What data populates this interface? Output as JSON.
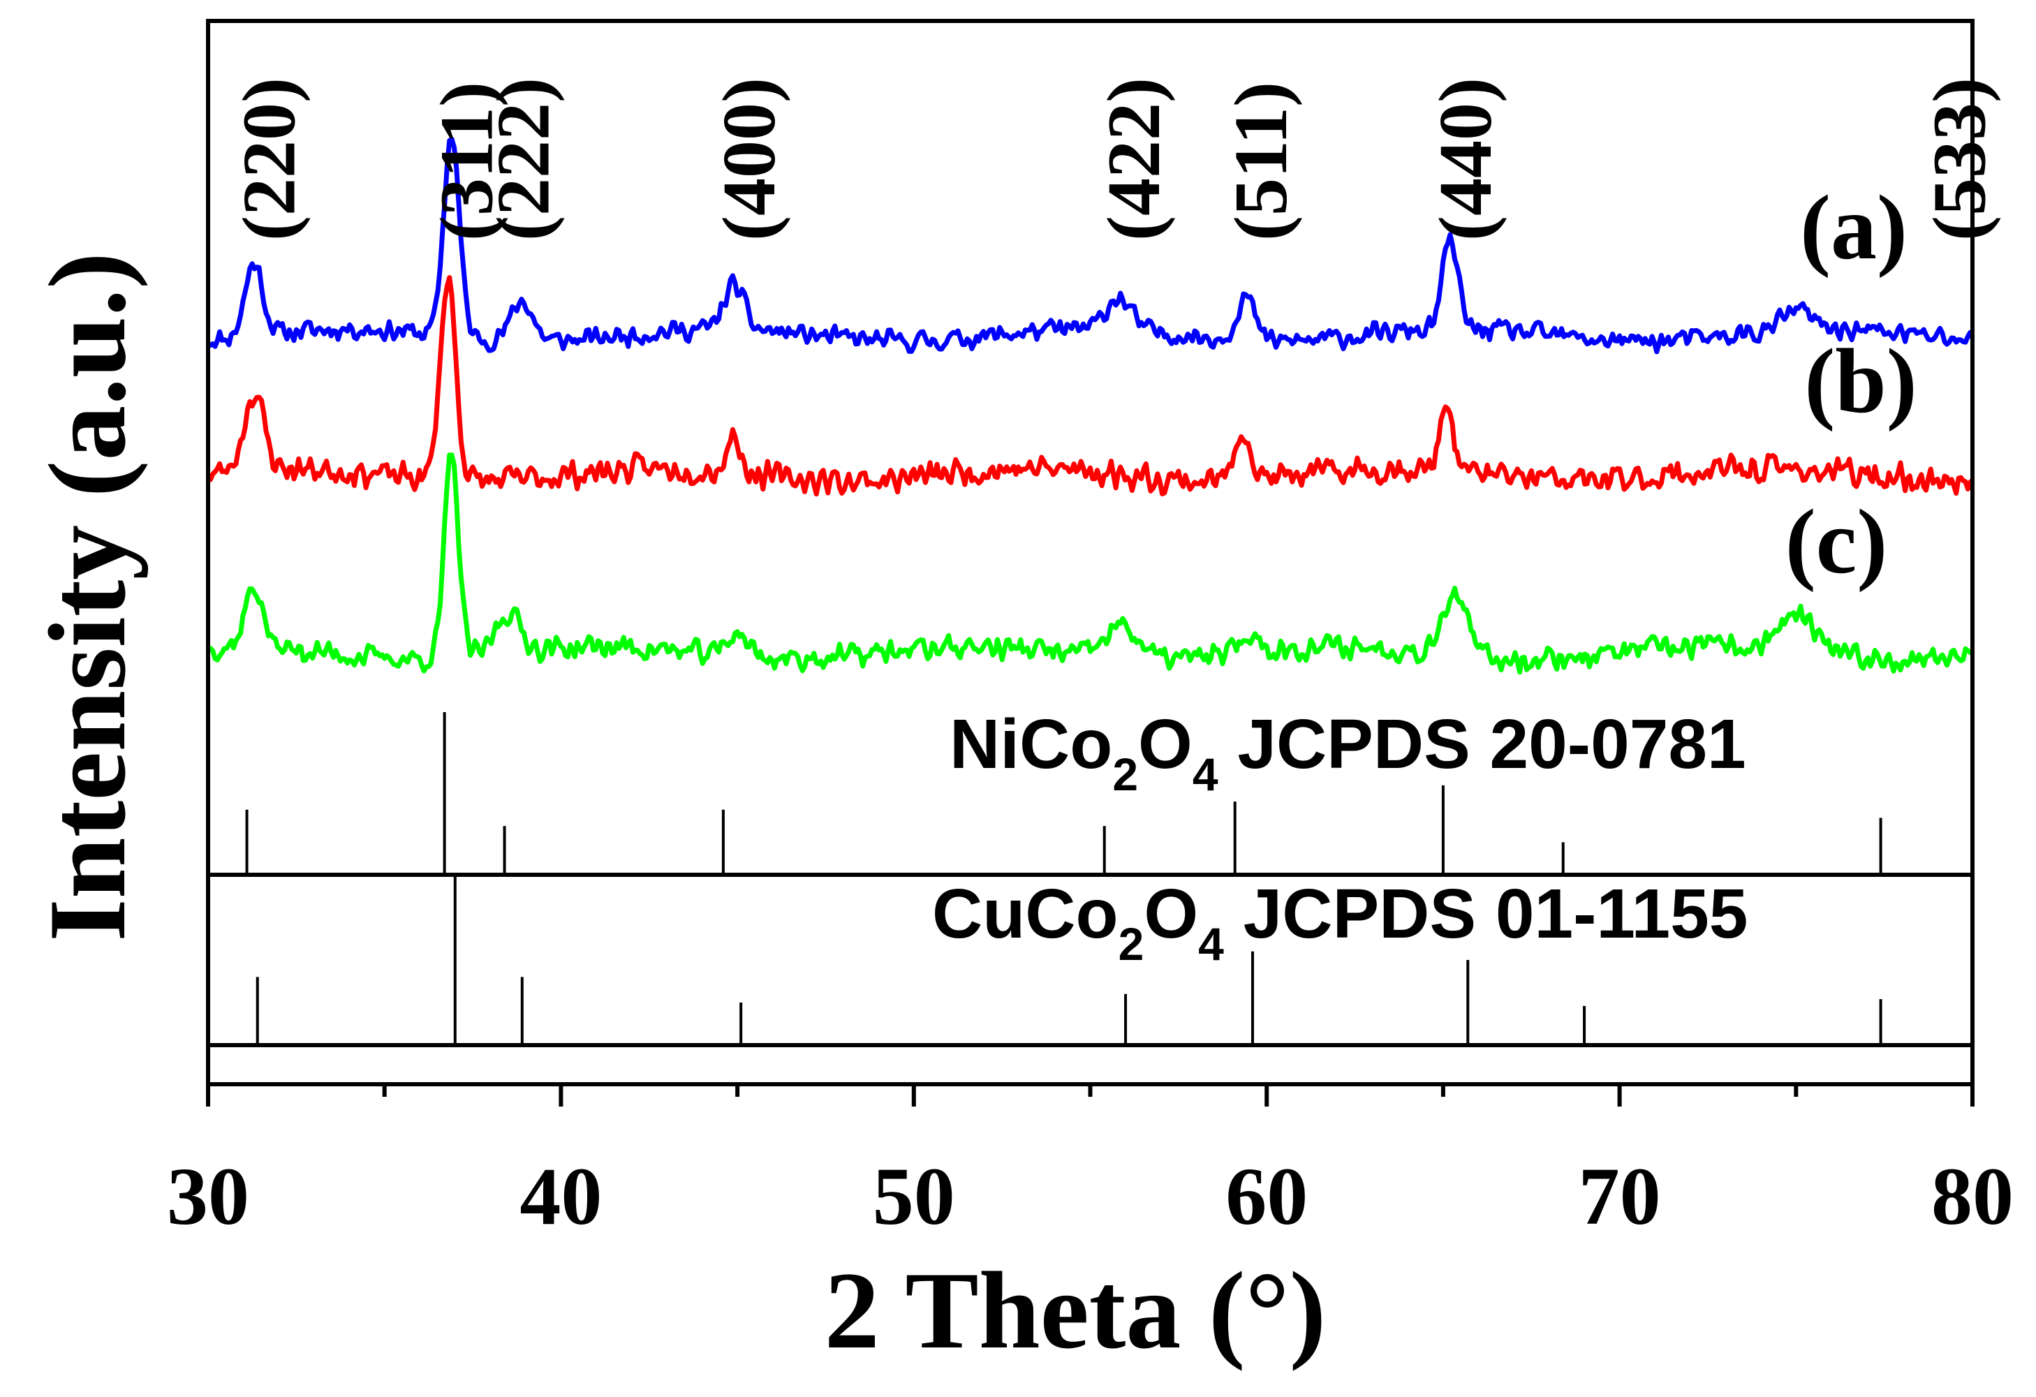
{
  "chart_data": {
    "type": "line",
    "title": "",
    "xlabel": "2 Theta (°)",
    "ylabel": "Intensity (a.u.)",
    "xlim": [
      30,
      80
    ],
    "x_ticks": [
      "30",
      "40",
      "50",
      "60",
      "70",
      "80"
    ],
    "x_tick_values": [
      30,
      40,
      50,
      60,
      70,
      80
    ],
    "y_ticks": [],
    "grid": false,
    "colors": {
      "a": "#0000ff",
      "b": "#ff0000",
      "c": "#00ff00",
      "ref": "#000000"
    },
    "series": [
      {
        "name": "(a)",
        "label": "(a)",
        "color": "#0000ff",
        "baseline": 0,
        "noise": 6,
        "seed": 11,
        "peaks": [
          {
            "x": 31.3,
            "h": 36,
            "w": 0.25
          },
          {
            "x": 36.9,
            "h": 100,
            "w": 0.22
          },
          {
            "x": 38.9,
            "h": 20,
            "w": 0.3
          },
          {
            "x": 44.9,
            "h": 22,
            "w": 0.28
          },
          {
            "x": 55.8,
            "h": 16,
            "w": 0.35
          },
          {
            "x": 59.4,
            "h": 22,
            "w": 0.25
          },
          {
            "x": 65.2,
            "h": 44,
            "w": 0.22
          },
          {
            "x": 75.0,
            "h": 10,
            "w": 0.4
          }
        ]
      },
      {
        "name": "(b)",
        "label": "(b)",
        "color": "#ff0000",
        "baseline": 0,
        "noise": 8,
        "seed": 23,
        "peaks": [
          {
            "x": 31.3,
            "h": 38,
            "w": 0.28
          },
          {
            "x": 36.8,
            "h": 100,
            "w": 0.22
          },
          {
            "x": 44.9,
            "h": 18,
            "w": 0.2
          },
          {
            "x": 59.3,
            "h": 26,
            "w": 0.22
          },
          {
            "x": 65.1,
            "h": 34,
            "w": 0.18
          }
        ]
      },
      {
        "name": "(c)",
        "label": "(c)",
        "color": "#00ff00",
        "baseline": 0,
        "noise": 7,
        "seed": 37,
        "peaks": [
          {
            "x": 31.3,
            "h": 30,
            "w": 0.25
          },
          {
            "x": 36.9,
            "h": 100,
            "w": 0.2
          },
          {
            "x": 38.5,
            "h": 20,
            "w": 0.35
          },
          {
            "x": 45.0,
            "h": 12,
            "w": 0.3
          },
          {
            "x": 55.9,
            "h": 16,
            "w": 0.45
          },
          {
            "x": 59.5,
            "h": 8,
            "w": 0.3
          },
          {
            "x": 65.3,
            "h": 30,
            "w": 0.35
          },
          {
            "x": 75.0,
            "h": 18,
            "w": 0.5
          }
        ]
      }
    ],
    "miller_indices": [
      {
        "label": "(220)",
        "x": 31.3
      },
      {
        "label": "(311)",
        "x": 36.9
      },
      {
        "label": "(222)",
        "x": 38.5
      },
      {
        "label": "(400)",
        "x": 44.9
      },
      {
        "label": "(422)",
        "x": 55.8
      },
      {
        "label": "(511)",
        "x": 59.4
      },
      {
        "label": "(440)",
        "x": 65.2
      },
      {
        "label": "(533)",
        "x": 79.2
      }
    ],
    "reference_patterns": [
      {
        "compound": "NiCo",
        "sub1": "2",
        "mid": "O",
        "sub2": "4",
        "card": "JCPDS 20-0781",
        "lines": [
          {
            "x": 31.1,
            "h": 0.4
          },
          {
            "x": 36.7,
            "h": 1.0
          },
          {
            "x": 38.4,
            "h": 0.3
          },
          {
            "x": 44.6,
            "h": 0.4
          },
          {
            "x": 55.4,
            "h": 0.3
          },
          {
            "x": 59.1,
            "h": 0.45
          },
          {
            "x": 65.0,
            "h": 0.55
          },
          {
            "x": 68.4,
            "h": 0.2
          },
          {
            "x": 77.4,
            "h": 0.35
          }
        ]
      },
      {
        "compound": "CuCo",
        "sub1": "2",
        "mid": "O",
        "sub2": "4",
        "card": "JCPDS 01-1155",
        "lines": [
          {
            "x": 31.4,
            "h": 0.4
          },
          {
            "x": 37.0,
            "h": 1.0
          },
          {
            "x": 38.9,
            "h": 0.4
          },
          {
            "x": 45.1,
            "h": 0.25
          },
          {
            "x": 56.0,
            "h": 0.3
          },
          {
            "x": 59.6,
            "h": 0.55
          },
          {
            "x": 65.7,
            "h": 0.5
          },
          {
            "x": 69.0,
            "h": 0.23
          },
          {
            "x": 77.4,
            "h": 0.27
          }
        ]
      }
    ]
  }
}
